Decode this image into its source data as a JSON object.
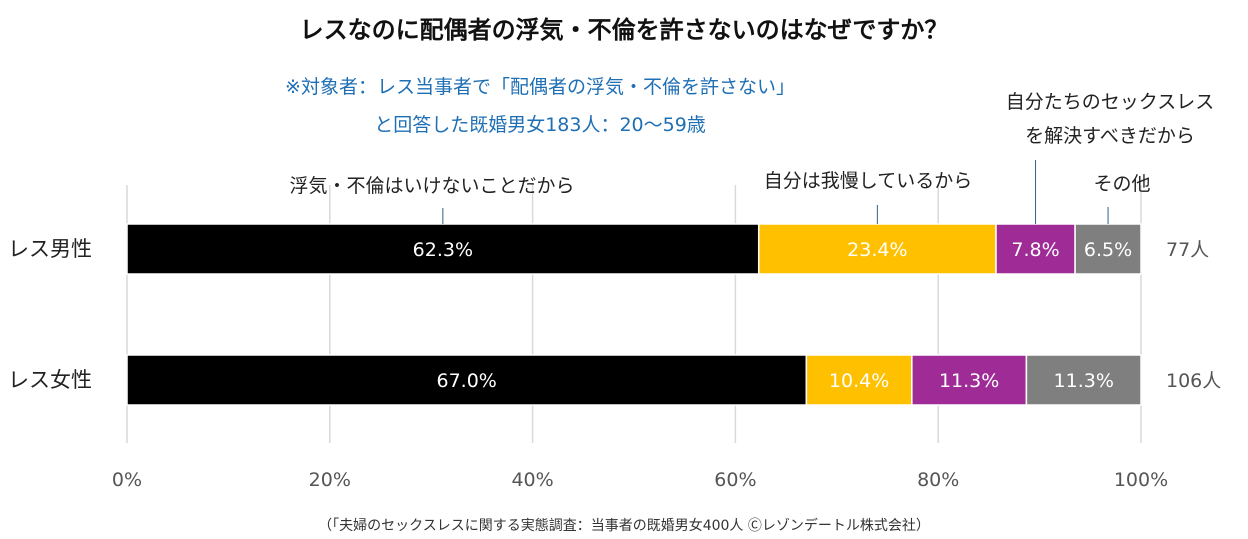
{
  "title": "レスなのに配偶者の浮気・不倫を許さないのはなぜですか？",
  "subtitle_lines": [
    "※対象者：レス当事者で「配偶者の浮気・不倫を許さない」",
    "と回答した既婚男女183人：20～59歳"
  ],
  "source": "（「夫婦のセックスレスに関する実態調査：当事者の既婚男女400人 Ⓒレゾンデートル株式会社）",
  "chart_data": {
    "type": "bar",
    "orientation": "horizontal",
    "stacked": "100%",
    "categories": [
      "レス男性",
      "レス女性"
    ],
    "counts": [
      "77人",
      "106人"
    ],
    "series": [
      {
        "name": "浮気・不倫はいけないことだから",
        "color": "#000000",
        "values": [
          62.3,
          67.0
        ],
        "labels": [
          "62.3%",
          "67.0%"
        ]
      },
      {
        "name": "自分は我慢しているから",
        "color": "#ffc000",
        "values": [
          23.4,
          10.4
        ],
        "labels": [
          "23.4%",
          "10.4%"
        ]
      },
      {
        "name": "自分たちのセックスレスを解決すべきだから",
        "color": "#9e2b96",
        "values": [
          7.8,
          11.3
        ],
        "labels": [
          "7.8%",
          "11.3%"
        ]
      },
      {
        "name": "その他",
        "color": "#7f7f7f",
        "values": [
          6.5,
          11.3
        ],
        "labels": [
          "6.5%",
          "11.3%"
        ]
      }
    ],
    "category_labels": [
      {
        "lines": [
          "浮気・不倫はいけないことだから"
        ]
      },
      {
        "lines": [
          "自分は我慢しているから"
        ]
      },
      {
        "lines": [
          "自分たちのセックスレス",
          "を解決すべきだから"
        ]
      },
      {
        "lines": [
          "その他"
        ]
      }
    ],
    "xlim": [
      0,
      100
    ],
    "xticks": [
      0,
      20,
      40,
      60,
      80,
      100
    ],
    "xtick_labels": [
      "0%",
      "20%",
      "40%",
      "60%",
      "80%",
      "100%"
    ],
    "grid": true
  }
}
